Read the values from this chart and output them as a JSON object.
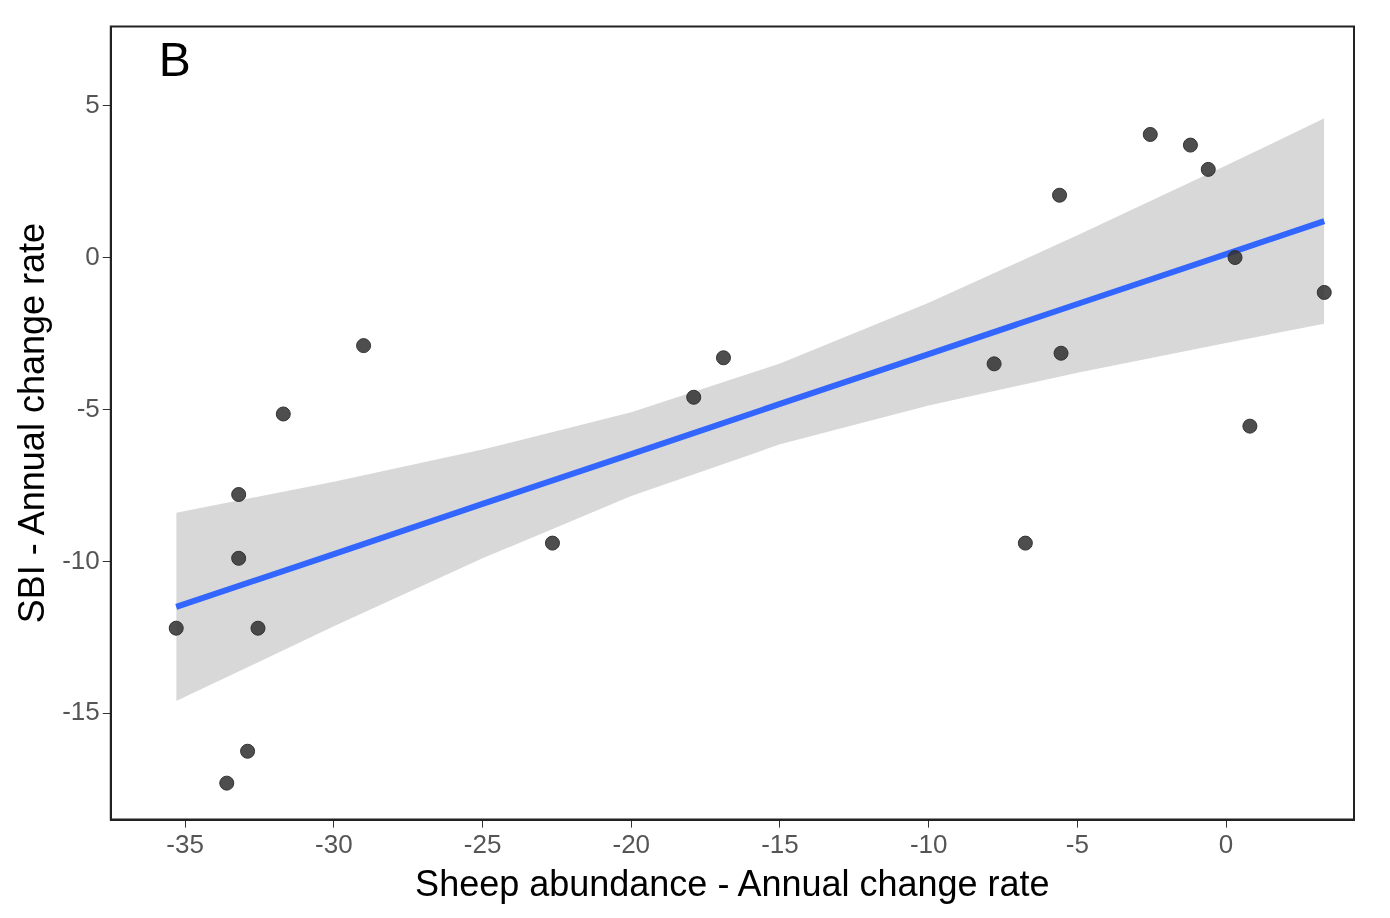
{
  "chart_data": {
    "type": "scatter",
    "xlabel": "Sheep abundance - Annual change rate",
    "ylabel": "SBI - Annual change rate",
    "annotations": [
      "B"
    ],
    "xlim": [
      -37.5,
      4.3
    ],
    "ylim": [
      -18.5,
      7.6
    ],
    "xticks": [
      -35,
      -30,
      -25,
      -20,
      -15,
      -10,
      -5,
      0
    ],
    "yticks": [
      -15,
      -10,
      -5,
      0,
      5
    ],
    "grid": false,
    "legend": false,
    "series": [
      {
        "marker": "circle",
        "color": "#333333",
        "x": [
          -35.3,
          -33.6,
          -32.9,
          -33.2,
          -33.2,
          -32.55,
          -31.7,
          -29.0,
          -22.65,
          -17.9,
          -16.9,
          -7.8,
          -6.75,
          -5.6,
          -5.55,
          -2.55,
          -1.2,
          -0.6,
          0.3,
          0.8,
          3.3
        ],
        "values": [
          -12.2,
          -17.3,
          -16.25,
          -7.8,
          -9.9,
          -12.2,
          -5.15,
          -2.9,
          -9.4,
          -4.6,
          -3.3,
          -3.5,
          -9.4,
          2.05,
          -3.15,
          4.05,
          3.7,
          2.9,
          0.0,
          -5.55,
          -1.15
        ]
      },
      {
        "type": "line",
        "marker": "none",
        "color": "#3366ff",
        "x": [
          -35.3,
          -30,
          -25,
          -20,
          -15,
          -10,
          -5,
          0,
          3.3
        ],
        "values": [
          -11.5,
          -9.76,
          -8.11,
          -6.47,
          -4.82,
          -3.18,
          -1.53,
          0.11,
          1.2
        ],
        "lower": [
          -14.6,
          -12.14,
          -9.9,
          -7.85,
          -6.15,
          -4.87,
          -3.79,
          -2.81,
          -2.18
        ],
        "upper": [
          -8.4,
          -7.38,
          -6.32,
          -5.09,
          -3.49,
          -1.49,
          0.73,
          3.03,
          4.58
        ]
      }
    ]
  }
}
